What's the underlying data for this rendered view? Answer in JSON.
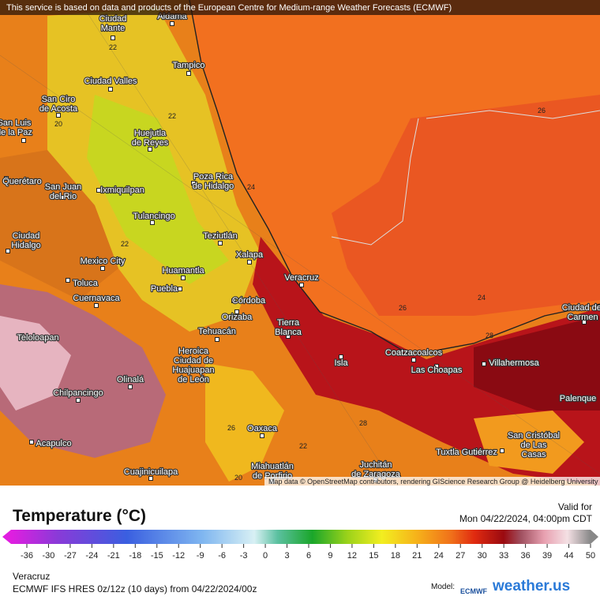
{
  "header": {
    "notice": "This service is based on data and products of the European Centre for Medium-range Weather Forecasts (ECMWF)",
    "attribution": "Map data © OpenStreetMap contributors, rendering GIScience Research Group @ Heidelberg University"
  },
  "map": {
    "cities": [
      {
        "lines": [
          "Aldama"
        ]
      },
      {
        "lines": [
          "Ciudad",
          "Mante"
        ]
      },
      {
        "lines": [
          "Tampico"
        ]
      },
      {
        "lines": [
          "Ciudad Valles"
        ]
      },
      {
        "lines": [
          "San Ciro",
          "de Acosta"
        ]
      },
      {
        "lines": [
          "San Luis",
          "de la Paz"
        ]
      },
      {
        "lines": [
          "Huejutla",
          "de Reyes"
        ]
      },
      {
        "lines": [
          "Poza Rica",
          "de Hidalgo"
        ]
      },
      {
        "lines": [
          "Querétaro"
        ]
      },
      {
        "lines": [
          "San Juan",
          "del Rio"
        ]
      },
      {
        "lines": [
          "Ixmiquilpan"
        ]
      },
      {
        "lines": [
          "Tulancingo"
        ]
      },
      {
        "lines": [
          "Ciudad",
          "Hidalgo"
        ]
      },
      {
        "lines": [
          "Teziutlán"
        ]
      },
      {
        "lines": [
          "Xalapa"
        ]
      },
      {
        "lines": [
          "Mexico City"
        ]
      },
      {
        "lines": [
          "Huamantla"
        ]
      },
      {
        "lines": [
          "Veracruz"
        ]
      },
      {
        "lines": [
          "Toluca"
        ]
      },
      {
        "lines": [
          "Puebla"
        ]
      },
      {
        "lines": [
          "Cuernavaca"
        ]
      },
      {
        "lines": [
          "Córdoba"
        ]
      },
      {
        "lines": [
          "Orizaba"
        ]
      },
      {
        "lines": [
          "Tierra",
          "Blanca"
        ]
      },
      {
        "lines": [
          "Tehuacán"
        ]
      },
      {
        "lines": [
          "Teloloapan"
        ]
      },
      {
        "lines": [
          "Heroica",
          "Ciudad de",
          "Huajuapan",
          "de León"
        ]
      },
      {
        "lines": [
          "Isla"
        ]
      },
      {
        "lines": [
          "Coatzacoalcos"
        ]
      },
      {
        "lines": [
          "Las Choapas"
        ]
      },
      {
        "lines": [
          "Villahermosa"
        ]
      },
      {
        "lines": [
          "Ciudad del",
          "Carmen"
        ]
      },
      {
        "lines": [
          "Olinalá"
        ]
      },
      {
        "lines": [
          "Palenque"
        ]
      },
      {
        "lines": [
          "Chilpancingo"
        ]
      },
      {
        "lines": [
          "Oaxaca"
        ]
      },
      {
        "lines": [
          "San Cristóbal",
          "de Las",
          "Casas"
        ]
      },
      {
        "lines": [
          "Acapulco"
        ]
      },
      {
        "lines": [
          "Tuxtla Gutiérrez"
        ]
      },
      {
        "lines": [
          "Juchitán",
          "de Zaragoza"
        ]
      },
      {
        "lines": [
          "Cuajinicuilapa"
        ]
      },
      {
        "lines": [
          "Miahuatlán",
          "de Porfirio"
        ]
      }
    ],
    "contour_labels": [
      "22",
      "20",
      "22",
      "24",
      "26",
      "26",
      "28",
      "22",
      "20",
      "26",
      "28",
      "24",
      "22"
    ]
  },
  "legend": {
    "title": "Temperature (°C)",
    "valid_label": "Valid for",
    "valid_time": "Mon 04/22/2024, 04:00pm CDT",
    "ticks": [
      -36,
      -30,
      -27,
      -24,
      -21,
      -18,
      -15,
      -12,
      -9,
      -6,
      -3,
      0,
      3,
      6,
      9,
      12,
      15,
      18,
      21,
      24,
      27,
      30,
      33,
      36,
      39,
      44,
      50
    ]
  },
  "footer": {
    "location": "Veracruz",
    "model_run": "ECMWF IFS HRES 0z/12z (10 days) from 04/22/2024/00z",
    "model_label": "Model:",
    "model_logo": "ECMWF",
    "brand": "weather.us"
  }
}
